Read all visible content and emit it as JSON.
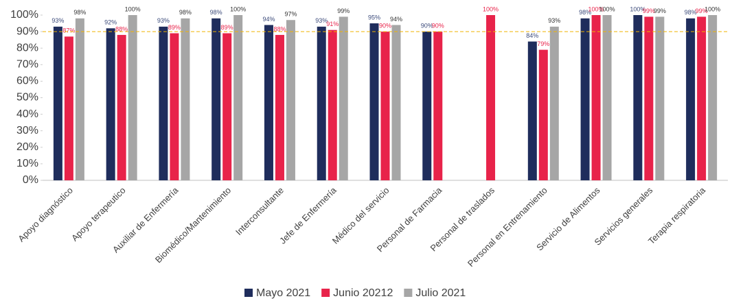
{
  "chart_data": {
    "type": "bar",
    "categories": [
      "Apoyo diagnóstico",
      "Apoyo terapeutico",
      "Auxiliar de Enfermería",
      "Biomédico/Mantenimiento",
      "Interconsultante",
      "Jefe de Enfermería",
      "Médico del servicio",
      "Personal de Farmacia",
      "Personal de traslados",
      "Personal en Entrenamiento",
      "Servicio de Alimentos",
      "Servicios generales",
      "Terapia respiratoria"
    ],
    "series": [
      {
        "name": "Mayo 2021",
        "color": "#1f2d5c",
        "label_color": "#3b4a7a",
        "values": [
          93,
          92,
          93,
          98,
          94,
          93,
          95,
          90,
          null,
          84,
          98,
          100,
          98
        ],
        "value_labels": [
          "93%",
          "92%",
          "93%",
          "98%",
          "94%",
          "93%",
          "95%",
          "90%",
          null,
          "84%",
          "98%",
          "100%",
          "98%"
        ]
      },
      {
        "name": "Junio 20212",
        "color": "#e8234a",
        "label_color": "#e8234a",
        "values": [
          87,
          88,
          89,
          89,
          88,
          91,
          90,
          90,
          100,
          79,
          100,
          99,
          99
        ],
        "value_labels": [
          "87%",
          "88%",
          "89%",
          "89%",
          "88%",
          "91%",
          "90%",
          "90%",
          "100%",
          "79%",
          "100%",
          "99%",
          "99%"
        ]
      },
      {
        "name": "Julio 2021",
        "color": "#a6a6a6",
        "label_color": "#333333",
        "values": [
          98,
          100,
          98,
          100,
          97,
          99,
          94,
          null,
          null,
          93,
          100,
          99,
          100
        ],
        "value_labels": [
          "98%",
          "100%",
          "98%",
          "100%",
          "97%",
          "99%",
          "94%",
          null,
          null,
          "93%",
          "100%",
          "99%",
          "100%"
        ]
      }
    ],
    "ylim": [
      0,
      100
    ],
    "yticks": [
      {
        "value": 0,
        "label": "0%"
      },
      {
        "value": 10,
        "label": "10%"
      },
      {
        "value": 20,
        "label": "20%"
      },
      {
        "value": 30,
        "label": "30%"
      },
      {
        "value": 40,
        "label": "40%"
      },
      {
        "value": 50,
        "label": "50%"
      },
      {
        "value": 60,
        "label": "60%"
      },
      {
        "value": 70,
        "label": "70%"
      },
      {
        "value": 80,
        "label": "80%"
      },
      {
        "value": 90,
        "label": "90%"
      },
      {
        "value": 100,
        "label": "100%"
      }
    ],
    "target": 90,
    "target_color": "#f0b400",
    "legend": "bottom"
  }
}
